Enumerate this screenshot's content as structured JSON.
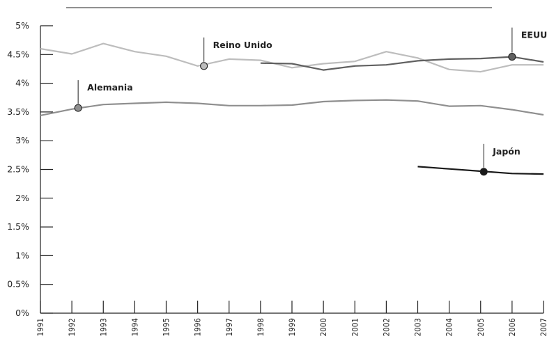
{
  "chart_data": {
    "type": "line",
    "title": "",
    "xlabel": "",
    "ylabel": "",
    "x": [
      1991,
      1992,
      1993,
      1994,
      1995,
      1996,
      1997,
      1998,
      1999,
      2000,
      2001,
      2002,
      2003,
      2004,
      2005,
      2006,
      2007
    ],
    "xtick_labels": [
      "1991",
      "1992",
      "1993",
      "1994",
      "1995",
      "1996",
      "1997",
      "1998",
      "1999",
      "2000",
      "2001",
      "2002",
      "2003",
      "2004",
      "2005",
      "2006",
      "2007"
    ],
    "ytick_labels": [
      "0%",
      "0.5%",
      "1%",
      "1.5%",
      "2%",
      "2.5%",
      "3%",
      "3.5%",
      "4%",
      "4.5%",
      "5%"
    ],
    "yticks": [
      0,
      0.5,
      1,
      1.5,
      2,
      2.5,
      3,
      3.5,
      4,
      4.5,
      5
    ],
    "ylim": [
      0,
      5
    ],
    "xlim": [
      1991,
      2007
    ],
    "grid": false,
    "series": [
      {
        "name": "Reino Unido",
        "color": "#bdbdbd",
        "x": [
          1991,
          1992,
          1993,
          1994,
          1995,
          1996,
          1997,
          1998,
          1999,
          2000,
          2001,
          2002,
          2003,
          2004,
          2005,
          2006,
          2007
        ],
        "values": [
          4.6,
          4.51,
          4.69,
          4.55,
          4.47,
          4.3,
          4.42,
          4.4,
          4.27,
          4.34,
          4.38,
          4.55,
          4.44,
          4.24,
          4.2,
          4.32,
          4.32
        ],
        "marker_x": 1996.2,
        "marker_value": 4.3
      },
      {
        "name": "EEUU",
        "color": "#606060",
        "x": [
          1998,
          1999,
          2000,
          2001,
          2002,
          2003,
          2004,
          2005,
          2006,
          2007
        ],
        "values": [
          4.35,
          4.34,
          4.23,
          4.3,
          4.32,
          4.39,
          4.42,
          4.43,
          4.46,
          4.37
        ],
        "marker_x": 2006,
        "marker_value": 4.46
      },
      {
        "name": "Alemania",
        "color": "#8f8f8f",
        "x": [
          1991,
          1992,
          1993,
          1994,
          1995,
          1996,
          1997,
          1998,
          1999,
          2000,
          2001,
          2002,
          2003,
          2004,
          2005,
          2006,
          2007
        ],
        "values": [
          3.44,
          3.55,
          3.63,
          3.65,
          3.67,
          3.65,
          3.61,
          3.61,
          3.62,
          3.68,
          3.7,
          3.71,
          3.69,
          3.6,
          3.61,
          3.54,
          3.45
        ],
        "marker_x": 1992.2,
        "marker_value": 3.57
      },
      {
        "name": "Japón",
        "color": "#1a1a1a",
        "x": [
          2003,
          2004,
          2005,
          2006,
          2007
        ],
        "values": [
          2.55,
          2.51,
          2.47,
          2.43,
          2.42
        ],
        "marker_x": 2005.1,
        "marker_value": 2.46
      }
    ]
  }
}
